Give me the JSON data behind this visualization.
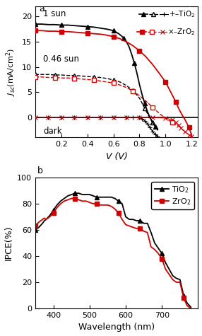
{
  "panel_a": {
    "title": "a",
    "xlabel": "V (V)",
    "ylabel": "$J_{sc}$(mA/cm$^2$)",
    "xlim": [
      0.0,
      1.25
    ],
    "ylim": [
      -4,
      22
    ],
    "yticks": [
      0,
      5,
      10,
      15,
      20
    ],
    "xticks": [
      0.2,
      0.4,
      0.6,
      0.8,
      1.0,
      1.2
    ],
    "ann_1sun": "1 sun",
    "ann_046sun": "0.46 sun",
    "ann_dark": "dark",
    "tio2_1sun_V": [
      0.0,
      0.05,
      0.1,
      0.15,
      0.2,
      0.25,
      0.3,
      0.35,
      0.4,
      0.45,
      0.5,
      0.55,
      0.6,
      0.62,
      0.64,
      0.66,
      0.68,
      0.7,
      0.72,
      0.74,
      0.76,
      0.78,
      0.8,
      0.82,
      0.84,
      0.86,
      0.88,
      0.9,
      0.92,
      0.94
    ],
    "tio2_1sun_J": [
      18.5,
      18.5,
      18.4,
      18.4,
      18.3,
      18.3,
      18.2,
      18.1,
      18.0,
      17.9,
      17.7,
      17.5,
      17.2,
      16.9,
      16.6,
      16.2,
      15.7,
      15.0,
      14.0,
      12.5,
      10.8,
      8.8,
      6.5,
      4.5,
      2.8,
      1.2,
      0.0,
      -1.0,
      -1.8,
      -2.5
    ],
    "zro2_1sun_V": [
      0.0,
      0.05,
      0.1,
      0.15,
      0.2,
      0.25,
      0.3,
      0.35,
      0.4,
      0.45,
      0.5,
      0.55,
      0.6,
      0.65,
      0.7,
      0.75,
      0.8,
      0.85,
      0.9,
      0.95,
      1.0,
      1.02,
      1.04,
      1.06,
      1.08,
      1.1,
      1.12,
      1.15,
      1.18,
      1.2
    ],
    "zro2_1sun_J": [
      17.2,
      17.2,
      17.1,
      17.1,
      17.0,
      17.0,
      16.9,
      16.8,
      16.7,
      16.6,
      16.5,
      16.3,
      16.0,
      15.6,
      15.0,
      14.2,
      13.2,
      12.0,
      10.5,
      8.8,
      7.0,
      6.0,
      5.0,
      4.0,
      3.0,
      1.8,
      0.8,
      -0.5,
      -2.0,
      -3.5
    ],
    "tio2_046sun_V": [
      0.0,
      0.05,
      0.1,
      0.15,
      0.2,
      0.25,
      0.3,
      0.35,
      0.4,
      0.45,
      0.5,
      0.55,
      0.6,
      0.65,
      0.7,
      0.75,
      0.8,
      0.82,
      0.84,
      0.86,
      0.88,
      0.9
    ],
    "tio2_046sun_J": [
      8.5,
      8.5,
      8.5,
      8.4,
      8.4,
      8.3,
      8.3,
      8.2,
      8.1,
      8.0,
      7.9,
      7.7,
      7.4,
      7.0,
      6.3,
      5.3,
      3.8,
      2.8,
      1.8,
      0.8,
      -0.2,
      -1.0
    ],
    "zro2_046sun_V": [
      0.0,
      0.05,
      0.1,
      0.15,
      0.2,
      0.25,
      0.3,
      0.35,
      0.4,
      0.45,
      0.5,
      0.55,
      0.6,
      0.65,
      0.7,
      0.75,
      0.8,
      0.85,
      0.9,
      0.95,
      1.0,
      1.05,
      1.08,
      1.1
    ],
    "zro2_046sun_J": [
      8.0,
      8.0,
      7.9,
      7.9,
      7.8,
      7.8,
      7.7,
      7.6,
      7.5,
      7.4,
      7.2,
      7.0,
      6.8,
      6.4,
      5.9,
      5.2,
      4.3,
      3.2,
      2.0,
      0.8,
      -0.2,
      -1.0,
      -1.5,
      -1.8
    ],
    "tio2_dark_V": [
      0.0,
      0.1,
      0.2,
      0.3,
      0.4,
      0.5,
      0.6,
      0.7,
      0.75,
      0.8,
      0.82,
      0.84,
      0.86,
      0.88,
      0.9,
      0.92,
      0.94
    ],
    "tio2_dark_J": [
      0.0,
      0.0,
      0.0,
      0.0,
      0.0,
      0.0,
      0.0,
      -0.02,
      -0.03,
      -0.1,
      -0.3,
      -0.7,
      -1.3,
      -2.0,
      -2.8,
      -3.4,
      -3.8
    ],
    "zro2_dark_V": [
      0.0,
      0.1,
      0.2,
      0.3,
      0.4,
      0.5,
      0.6,
      0.7,
      0.8,
      0.9,
      1.0,
      1.05,
      1.08,
      1.1,
      1.12,
      1.15,
      1.18,
      1.2
    ],
    "zro2_dark_J": [
      0.0,
      0.0,
      0.0,
      0.0,
      0.0,
      0.0,
      0.0,
      0.0,
      -0.02,
      -0.05,
      -0.15,
      -0.5,
      -1.0,
      -1.6,
      -2.2,
      -2.9,
      -3.5,
      -3.8
    ]
  },
  "panel_b": {
    "title": "b",
    "xlabel": "Wavelength (nm)",
    "ylabel": "IPCE(%)",
    "xlim": [
      350,
      800
    ],
    "ylim": [
      0,
      100
    ],
    "xticks": [
      400,
      500,
      600,
      700
    ],
    "yticks": [
      0,
      20,
      40,
      60,
      80,
      100
    ],
    "tio2_wl": [
      350,
      360,
      370,
      375,
      380,
      390,
      400,
      410,
      420,
      430,
      440,
      450,
      460,
      470,
      480,
      490,
      500,
      510,
      520,
      530,
      540,
      550,
      560,
      570,
      580,
      590,
      600,
      610,
      620,
      630,
      640,
      650,
      660,
      670,
      680,
      690,
      700,
      710,
      720,
      730,
      740,
      750,
      760,
      770,
      780
    ],
    "tio2_ipce": [
      60,
      62,
      65,
      67,
      68,
      71,
      75,
      79,
      82,
      84,
      86,
      87,
      88,
      88,
      87,
      87,
      87,
      86,
      85,
      85,
      85,
      85,
      85,
      84,
      82,
      80,
      70,
      68,
      68,
      67,
      67,
      65,
      65,
      58,
      50,
      46,
      42,
      35,
      30,
      25,
      23,
      22,
      10,
      4,
      1
    ],
    "zro2_wl": [
      350,
      360,
      370,
      375,
      380,
      390,
      400,
      410,
      420,
      430,
      440,
      450,
      460,
      470,
      480,
      490,
      500,
      510,
      520,
      530,
      540,
      550,
      560,
      570,
      580,
      590,
      600,
      610,
      620,
      630,
      640,
      650,
      660,
      670,
      680,
      690,
      700,
      710,
      720,
      730,
      740,
      750,
      760,
      770,
      780
    ],
    "zro2_ipce": [
      63,
      66,
      68,
      69,
      68,
      70,
      73,
      77,
      80,
      82,
      83,
      84,
      84,
      83,
      82,
      82,
      81,
      80,
      80,
      79,
      79,
      79,
      78,
      76,
      73,
      68,
      64,
      63,
      62,
      61,
      61,
      59,
      58,
      47,
      45,
      42,
      38,
      30,
      26,
      22,
      20,
      20,
      8,
      2,
      0
    ]
  },
  "black": "#000000",
  "red": "#cc0000"
}
